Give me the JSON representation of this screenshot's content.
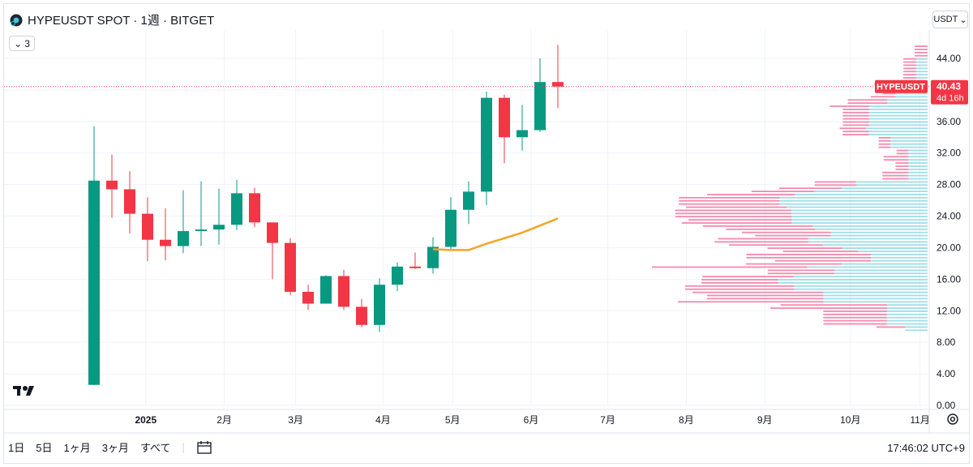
{
  "header": {
    "symbol_title": "HYPEUSDT SPOT · 1週 · BITGET",
    "indicator_count": "3",
    "currency": "USDT"
  },
  "price_badge": {
    "symbol": "HYPEUSDT",
    "price": "40.43",
    "countdown": "4d 16h",
    "color": "#f23645"
  },
  "bottom_bar": {
    "ranges": [
      "1日",
      "5日",
      "1ヶ月",
      "3ヶ月",
      "すべて"
    ],
    "clock": "17:46:02 UTC+9"
  },
  "colors": {
    "up": "#089981",
    "down": "#f23645",
    "ma": "#f7a325",
    "vp_up": "#5ec8da",
    "vp_down": "#f06292"
  },
  "chart_data": {
    "type": "candlestick",
    "y_ticks": [
      "44.00",
      "40.00",
      "36.00",
      "32.00",
      "28.00",
      "24.00",
      "20.00",
      "16.00",
      "12.00",
      "8.00",
      "4.00",
      "0.00"
    ],
    "ylim": [
      0,
      46
    ],
    "x_labels": [
      {
        "label": "2025",
        "week": 2.9
      },
      {
        "label": "2月",
        "week": 7.3
      },
      {
        "label": "3月",
        "week": 11.3
      },
      {
        "label": "4月",
        "week": 16.2
      },
      {
        "label": "5月",
        "week": 20.1
      },
      {
        "label": "6月",
        "week": 24.5
      },
      {
        "label": "7月",
        "week": 28.8
      },
      {
        "label": "8月",
        "week": 33.2
      },
      {
        "label": "9月",
        "week": 37.6
      },
      {
        "label": "10月",
        "week": 42.4
      },
      {
        "label": "11月",
        "week": 46.3
      }
    ],
    "candles": [
      {
        "o": 2.6,
        "h": 35.4,
        "l": 2.6,
        "c": 28.5
      },
      {
        "o": 28.5,
        "h": 31.8,
        "l": 23.8,
        "c": 27.4
      },
      {
        "o": 27.4,
        "h": 29.7,
        "l": 21.8,
        "c": 24.3
      },
      {
        "o": 24.3,
        "h": 26.4,
        "l": 18.3,
        "c": 21.0
      },
      {
        "o": 21.0,
        "h": 25.0,
        "l": 18.4,
        "c": 20.2
      },
      {
        "o": 20.2,
        "h": 27.3,
        "l": 19.3,
        "c": 22.1
      },
      {
        "o": 22.1,
        "h": 28.4,
        "l": 20.2,
        "c": 22.3
      },
      {
        "o": 22.3,
        "h": 27.5,
        "l": 20.4,
        "c": 22.9
      },
      {
        "o": 22.9,
        "h": 28.6,
        "l": 22.2,
        "c": 26.9
      },
      {
        "o": 26.9,
        "h": 27.6,
        "l": 22.6,
        "c": 23.2
      },
      {
        "o": 23.2,
        "h": 23.2,
        "l": 16.0,
        "c": 20.6
      },
      {
        "o": 20.6,
        "h": 21.2,
        "l": 14.0,
        "c": 14.4
      },
      {
        "o": 14.4,
        "h": 15.3,
        "l": 12.1,
        "c": 12.9
      },
      {
        "o": 12.9,
        "h": 16.5,
        "l": 12.9,
        "c": 16.4
      },
      {
        "o": 16.4,
        "h": 17.2,
        "l": 12.1,
        "c": 12.5
      },
      {
        "o": 12.5,
        "h": 13.5,
        "l": 9.9,
        "c": 10.2
      },
      {
        "o": 10.2,
        "h": 16.1,
        "l": 9.3,
        "c": 15.3
      },
      {
        "o": 15.3,
        "h": 18.1,
        "l": 14.5,
        "c": 17.6
      },
      {
        "o": 17.6,
        "h": 19.4,
        "l": 17.3,
        "c": 17.4
      },
      {
        "o": 17.4,
        "h": 21.3,
        "l": 16.7,
        "c": 20.1
      },
      {
        "o": 20.1,
        "h": 26.4,
        "l": 19.6,
        "c": 24.8
      },
      {
        "o": 24.8,
        "h": 28.4,
        "l": 23.0,
        "c": 27.1
      },
      {
        "o": 27.1,
        "h": 39.8,
        "l": 25.4,
        "c": 39.0
      },
      {
        "o": 39.0,
        "h": 39.4,
        "l": 30.7,
        "c": 34.0
      },
      {
        "o": 34.0,
        "h": 38.1,
        "l": 32.3,
        "c": 34.9
      },
      {
        "o": 34.9,
        "h": 44.0,
        "l": 34.7,
        "c": 41.0
      },
      {
        "o": 41.0,
        "h": 45.7,
        "l": 37.7,
        "c": 40.43
      }
    ],
    "ma_line": [
      {
        "week": 19,
        "value": 19.8
      },
      {
        "week": 20,
        "value": 19.7
      },
      {
        "week": 21,
        "value": 19.7
      },
      {
        "week": 22,
        "value": 20.5
      },
      {
        "week": 23,
        "value": 21.2
      },
      {
        "week": 24,
        "value": 21.9
      },
      {
        "week": 25,
        "value": 22.8
      },
      {
        "week": 26,
        "value": 23.7
      }
    ],
    "last_price": 40.43
  }
}
